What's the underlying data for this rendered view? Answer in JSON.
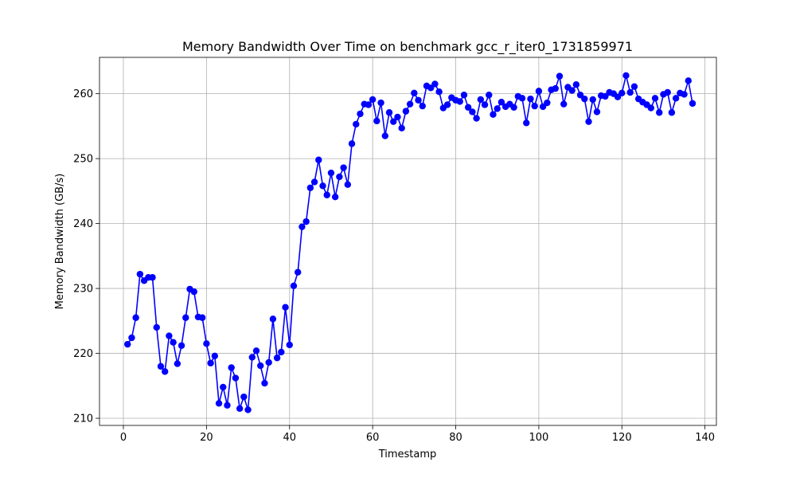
{
  "chart_data": {
    "type": "line",
    "title": "Memory Bandwidth Over Time on benchmark gcc_r_iter0_1731859971",
    "xlabel": "Timestamp",
    "ylabel": "Memory Bandwidth (GB/s)",
    "xlim": [
      -5.75,
      142.75
    ],
    "ylim": [
      208.9,
      265.6
    ],
    "xticks": [
      0,
      20,
      40,
      60,
      80,
      100,
      120,
      140
    ],
    "yticks": [
      210,
      220,
      230,
      240,
      250,
      260
    ],
    "grid": true,
    "series": [
      {
        "color": "#0000ff",
        "marker": "circle",
        "x": [
          1,
          2,
          3,
          4,
          5,
          6,
          7,
          8,
          9,
          10,
          11,
          12,
          13,
          14,
          15,
          16,
          17,
          18,
          19,
          20,
          21,
          22,
          23,
          24,
          25,
          26,
          27,
          28,
          29,
          30,
          31,
          32,
          33,
          34,
          35,
          36,
          37,
          38,
          39,
          40,
          41,
          42,
          43,
          44,
          45,
          46,
          47,
          48,
          49,
          50,
          51,
          52,
          53,
          54,
          55,
          56,
          57,
          58,
          59,
          60,
          61,
          62,
          63,
          64,
          65,
          66,
          67,
          68,
          69,
          70,
          71,
          72,
          73,
          74,
          75,
          76,
          77,
          78,
          79,
          80,
          81,
          82,
          83,
          84,
          85,
          86,
          87,
          88,
          89,
          90,
          91,
          92,
          93,
          94,
          95,
          96,
          97,
          98,
          99,
          100,
          101,
          102,
          103,
          104,
          105,
          106,
          107,
          108,
          109,
          110,
          111,
          112,
          113,
          114,
          115,
          116,
          117,
          118,
          119,
          120,
          121,
          122,
          123,
          124,
          125,
          126,
          127,
          128,
          129,
          130,
          131,
          132,
          133,
          134,
          135,
          136,
          137
        ],
        "values": [
          221.4,
          222.4,
          225.5,
          232.2,
          231.2,
          231.7,
          231.7,
          224.0,
          218.0,
          217.2,
          222.7,
          221.7,
          218.4,
          221.2,
          225.5,
          229.9,
          229.5,
          225.6,
          225.5,
          221.5,
          218.5,
          219.6,
          212.3,
          214.8,
          212.0,
          217.8,
          216.2,
          211.5,
          213.3,
          211.3,
          219.4,
          220.4,
          218.1,
          215.4,
          218.6,
          225.3,
          219.3,
          220.2,
          227.1,
          221.3,
          230.4,
          232.5,
          239.5,
          240.3,
          245.5,
          246.4,
          249.8,
          245.8,
          244.4,
          247.8,
          244.1,
          247.2,
          248.6,
          246.0,
          252.3,
          255.3,
          256.9,
          258.4,
          258.3,
          259.1,
          255.8,
          258.6,
          253.5,
          257.1,
          255.7,
          256.4,
          254.7,
          257.3,
          258.4,
          260.1,
          259.0,
          258.1,
          261.2,
          260.9,
          261.5,
          260.3,
          257.8,
          258.3,
          259.4,
          259.0,
          258.8,
          259.8,
          257.9,
          257.2,
          256.2,
          259.1,
          258.3,
          259.8,
          256.8,
          257.7,
          258.7,
          258.0,
          258.4,
          257.9,
          259.6,
          259.3,
          255.5,
          259.2,
          258.1,
          260.4,
          258.0,
          258.6,
          260.6,
          260.8,
          262.7,
          258.4,
          261.0,
          260.5,
          261.4,
          259.8,
          259.2,
          255.7,
          259.1,
          257.2,
          259.7,
          259.6,
          260.2,
          260.0,
          259.5,
          260.1,
          262.8,
          260.2,
          261.1,
          259.2,
          258.7,
          258.3,
          257.8,
          259.3,
          257.1,
          259.9,
          260.2,
          257.1,
          259.3,
          260.1,
          259.9,
          262.0,
          258.5
        ]
      }
    ]
  }
}
